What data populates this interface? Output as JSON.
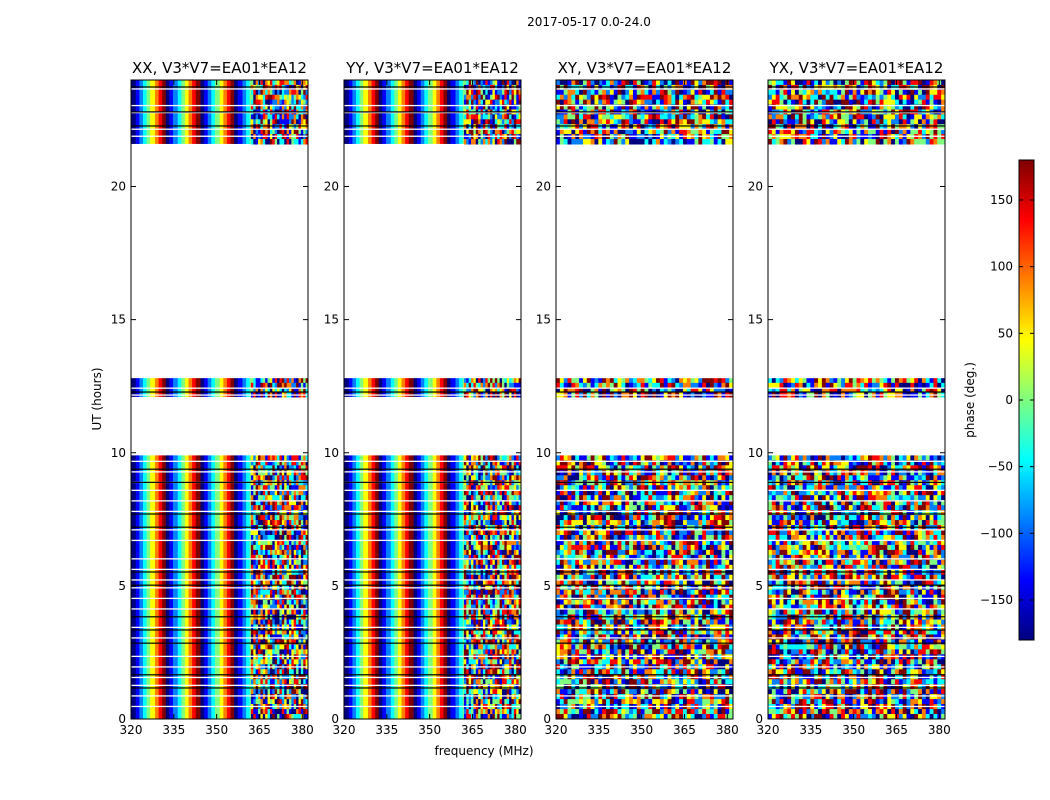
{
  "figure": {
    "suptitle": "2017-05-17 0.0-24.0"
  },
  "chart_data": {
    "type": "heatmap",
    "suptitle": "2017-05-17 0.0-24.0",
    "xlabel": "frequency (MHz)",
    "ylabel": "UT (hours)",
    "xlim": [
      320,
      382
    ],
    "ylim": [
      0,
      24
    ],
    "xticks": [
      320,
      335,
      350,
      365,
      380
    ],
    "yticks": [
      0,
      5,
      10,
      15,
      20
    ],
    "colorbar": {
      "label": "phase (deg.)",
      "range": [
        -180,
        180
      ],
      "ticks": [
        150,
        100,
        50,
        0,
        -50,
        -100,
        -150
      ],
      "tick_labels": [
        "150",
        "100",
        "50",
        "0",
        "−50",
        "−100",
        "−150"
      ],
      "colormap": [
        "#00007f",
        "#0000ff",
        "#007fff",
        "#00ffff",
        "#7fff7f",
        "#ffff00",
        "#ff7f00",
        "#ff0000",
        "#7f0000"
      ]
    },
    "data_time_ranges_hours": [
      [
        0.0,
        9.9
      ],
      [
        12.1,
        12.8
      ],
      [
        21.6,
        24.0
      ]
    ],
    "panels": [
      {
        "title": "XX, V3*V7=EA01*EA12",
        "pattern": "fringes",
        "fringe_period_mhz": 12
      },
      {
        "title": "YY, V3*V7=EA01*EA12",
        "pattern": "fringes",
        "fringe_period_mhz": 12
      },
      {
        "title": "XY, V3*V7=EA01*EA12",
        "pattern": "noisy"
      },
      {
        "title": "YX, V3*V7=EA01*EA12",
        "pattern": "noisy"
      }
    ]
  }
}
